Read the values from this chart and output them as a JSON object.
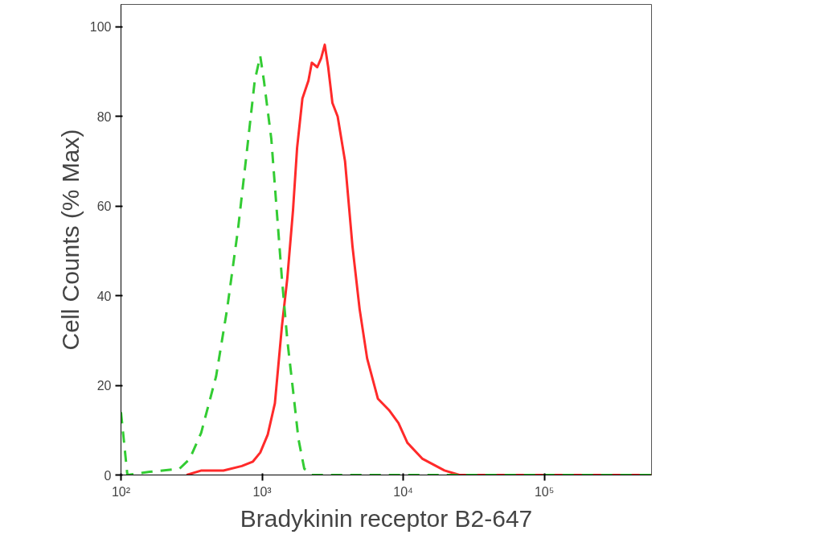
{
  "chart_data": {
    "type": "line",
    "xlabel": "Bradykinin receptor B2-647",
    "ylabel": "Cell Counts (% Max)",
    "log": "x",
    "grid": false,
    "xlim": [
      100,
      575000
    ],
    "ylim": [
      0,
      105
    ],
    "xticks": [
      {
        "value": 100,
        "label": "10²"
      },
      {
        "value": 1000,
        "label": "10³"
      },
      {
        "value": 10000,
        "label": "10⁴"
      },
      {
        "value": 100000,
        "label": "10⁵"
      }
    ],
    "yticks": [
      0,
      20,
      40,
      60,
      80,
      100
    ],
    "series": [
      {
        "color": "#ff2a2a",
        "line_style": "solid",
        "x": [
          292,
          372,
          532,
          718,
          861,
          970,
          1096,
          1232,
          1380,
          1510,
          1655,
          1770,
          1930,
          2130,
          2250,
          2460,
          2620,
          2780,
          2940,
          3150,
          3430,
          3870,
          4370,
          4910,
          5550,
          6620,
          7920,
          9250,
          10700,
          13700,
          19600,
          25000,
          575000
        ],
        "values": [
          0,
          1,
          1,
          2,
          3,
          5,
          9,
          16,
          33,
          44,
          59,
          73,
          84,
          88,
          92,
          91,
          93,
          96,
          91,
          83,
          80,
          70,
          51,
          37,
          26,
          17,
          14.5,
          11.6,
          7.2,
          3.6,
          1,
          0,
          0
        ]
      },
      {
        "color": "#33cc33",
        "line_style": "dashed",
        "x": [
          100,
          111,
          160,
          260,
          307,
          370,
          472,
          565,
          676,
          785,
          887,
          970,
          1030,
          1162,
          1270,
          1380,
          1510,
          1655,
          1810,
          1990,
          2250,
          575000
        ],
        "values": [
          14,
          0,
          0.7,
          1.4,
          3.6,
          9.4,
          22,
          37,
          55,
          73,
          88,
          93.5,
          88,
          75,
          59,
          44,
          30,
          19,
          8,
          1.4,
          0,
          0
        ]
      }
    ]
  }
}
